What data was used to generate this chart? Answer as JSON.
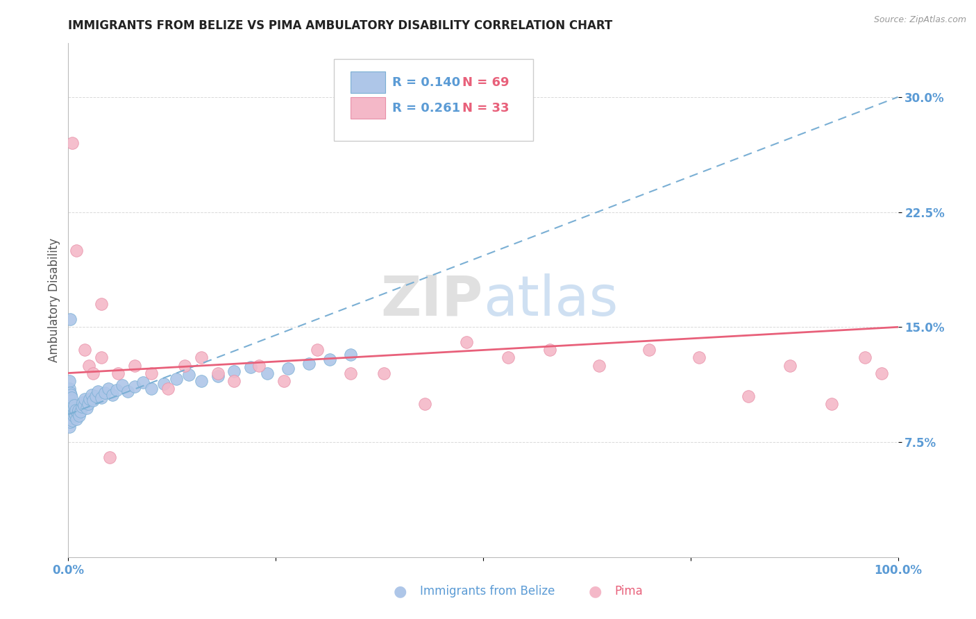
{
  "title": "IMMIGRANTS FROM BELIZE VS PIMA AMBULATORY DISABILITY CORRELATION CHART",
  "source": "Source: ZipAtlas.com",
  "ylabel": "Ambulatory Disability",
  "xlim": [
    0.0,
    1.0
  ],
  "ylim": [
    0.0,
    0.335
  ],
  "xticks": [
    0.0,
    0.25,
    0.5,
    0.75,
    1.0
  ],
  "xtick_labels": [
    "0.0%",
    "",
    "",
    "",
    "100.0%"
  ],
  "yticks": [
    0.075,
    0.15,
    0.225,
    0.3
  ],
  "ytick_labels": [
    "7.5%",
    "15.0%",
    "22.5%",
    "30.0%"
  ],
  "blue_fill": "#aec6e8",
  "pink_fill": "#f4b8c8",
  "blue_edge": "#7aafd4",
  "pink_edge": "#e890a8",
  "blue_trend_color": "#7aafd4",
  "pink_trend_color": "#e8607a",
  "axis_tick_color": "#5b9bd5",
  "grid_color": "#d0d0d0",
  "title_color": "#222222",
  "source_color": "#999999",
  "ylabel_color": "#555555",
  "watermark_color": "#e0e8f0",
  "legend_text_blue": "#5b9bd5",
  "legend_text_pink": "#e8607a",
  "blue_x": [
    0.001,
    0.001,
    0.001,
    0.001,
    0.001,
    0.001,
    0.001,
    0.001,
    0.001,
    0.001,
    0.002,
    0.002,
    0.002,
    0.002,
    0.002,
    0.003,
    0.003,
    0.003,
    0.003,
    0.004,
    0.004,
    0.004,
    0.005,
    0.005,
    0.006,
    0.006,
    0.007,
    0.007,
    0.008,
    0.009,
    0.01,
    0.011,
    0.012,
    0.013,
    0.015,
    0.016,
    0.017,
    0.019,
    0.02,
    0.022,
    0.024,
    0.026,
    0.028,
    0.03,
    0.033,
    0.036,
    0.04,
    0.044,
    0.048,
    0.053,
    0.058,
    0.065,
    0.072,
    0.08,
    0.09,
    0.1,
    0.115,
    0.13,
    0.145,
    0.16,
    0.18,
    0.2,
    0.22,
    0.24,
    0.265,
    0.29,
    0.315,
    0.34,
    0.002
  ],
  "blue_y": [
    0.095,
    0.1,
    0.105,
    0.11,
    0.115,
    0.085,
    0.09,
    0.092,
    0.098,
    0.103,
    0.088,
    0.093,
    0.097,
    0.102,
    0.107,
    0.091,
    0.096,
    0.1,
    0.106,
    0.094,
    0.099,
    0.104,
    0.089,
    0.095,
    0.092,
    0.097,
    0.094,
    0.099,
    0.093,
    0.096,
    0.09,
    0.094,
    0.096,
    0.092,
    0.095,
    0.098,
    0.101,
    0.099,
    0.103,
    0.097,
    0.1,
    0.103,
    0.106,
    0.102,
    0.105,
    0.108,
    0.104,
    0.107,
    0.11,
    0.106,
    0.109,
    0.112,
    0.108,
    0.111,
    0.114,
    0.11,
    0.113,
    0.116,
    0.119,
    0.115,
    0.118,
    0.121,
    0.124,
    0.12,
    0.123,
    0.126,
    0.129,
    0.132,
    0.155
  ],
  "pink_x": [
    0.005,
    0.01,
    0.02,
    0.025,
    0.03,
    0.04,
    0.05,
    0.06,
    0.08,
    0.1,
    0.12,
    0.14,
    0.16,
    0.18,
    0.2,
    0.23,
    0.26,
    0.3,
    0.34,
    0.38,
    0.43,
    0.48,
    0.53,
    0.58,
    0.64,
    0.7,
    0.76,
    0.82,
    0.87,
    0.92,
    0.96,
    0.98,
    0.04
  ],
  "pink_y": [
    0.27,
    0.2,
    0.135,
    0.125,
    0.12,
    0.13,
    0.065,
    0.12,
    0.125,
    0.12,
    0.11,
    0.125,
    0.13,
    0.12,
    0.115,
    0.125,
    0.115,
    0.135,
    0.12,
    0.12,
    0.1,
    0.14,
    0.13,
    0.135,
    0.125,
    0.135,
    0.13,
    0.105,
    0.125,
    0.1,
    0.13,
    0.12,
    0.165
  ],
  "blue_trend_x0": 0.0,
  "blue_trend_y0": 0.093,
  "blue_trend_x1": 1.0,
  "blue_trend_y1": 0.3,
  "pink_trend_x0": 0.0,
  "pink_trend_y0": 0.12,
  "pink_trend_x1": 1.0,
  "pink_trend_y1": 0.15
}
